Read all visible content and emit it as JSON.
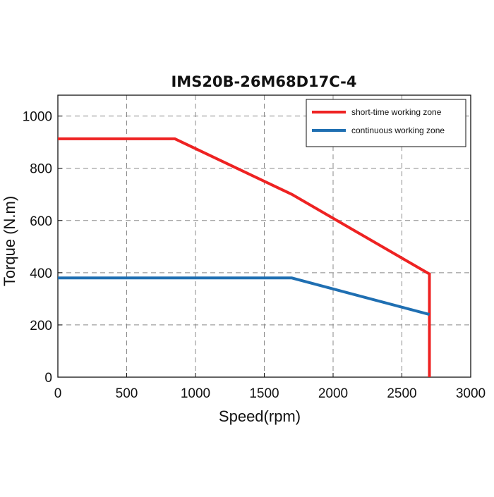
{
  "chart_data": {
    "type": "line",
    "title": "IMS20B-26M68D17C-4",
    "xlabel": "Speed(rpm)",
    "ylabel": "Torque (N.m)",
    "xlim": [
      0,
      3000
    ],
    "ylim": [
      0,
      1080
    ],
    "xticks": [
      0,
      500,
      1000,
      1500,
      2000,
      2500,
      3000
    ],
    "yticks": [
      0,
      200,
      400,
      600,
      800,
      1000
    ],
    "grid": true,
    "legend_position": "top-right",
    "series": [
      {
        "name": "short-time working zone",
        "color": "#ee2222",
        "points": [
          [
            0,
            913
          ],
          [
            850,
            913
          ],
          [
            1700,
            700
          ],
          [
            2700,
            395
          ],
          [
            2700,
            0
          ]
        ]
      },
      {
        "name": "continuous working zone",
        "color": "#1f6fb2",
        "points": [
          [
            0,
            380
          ],
          [
            1700,
            380
          ],
          [
            2700,
            240
          ]
        ]
      }
    ]
  }
}
